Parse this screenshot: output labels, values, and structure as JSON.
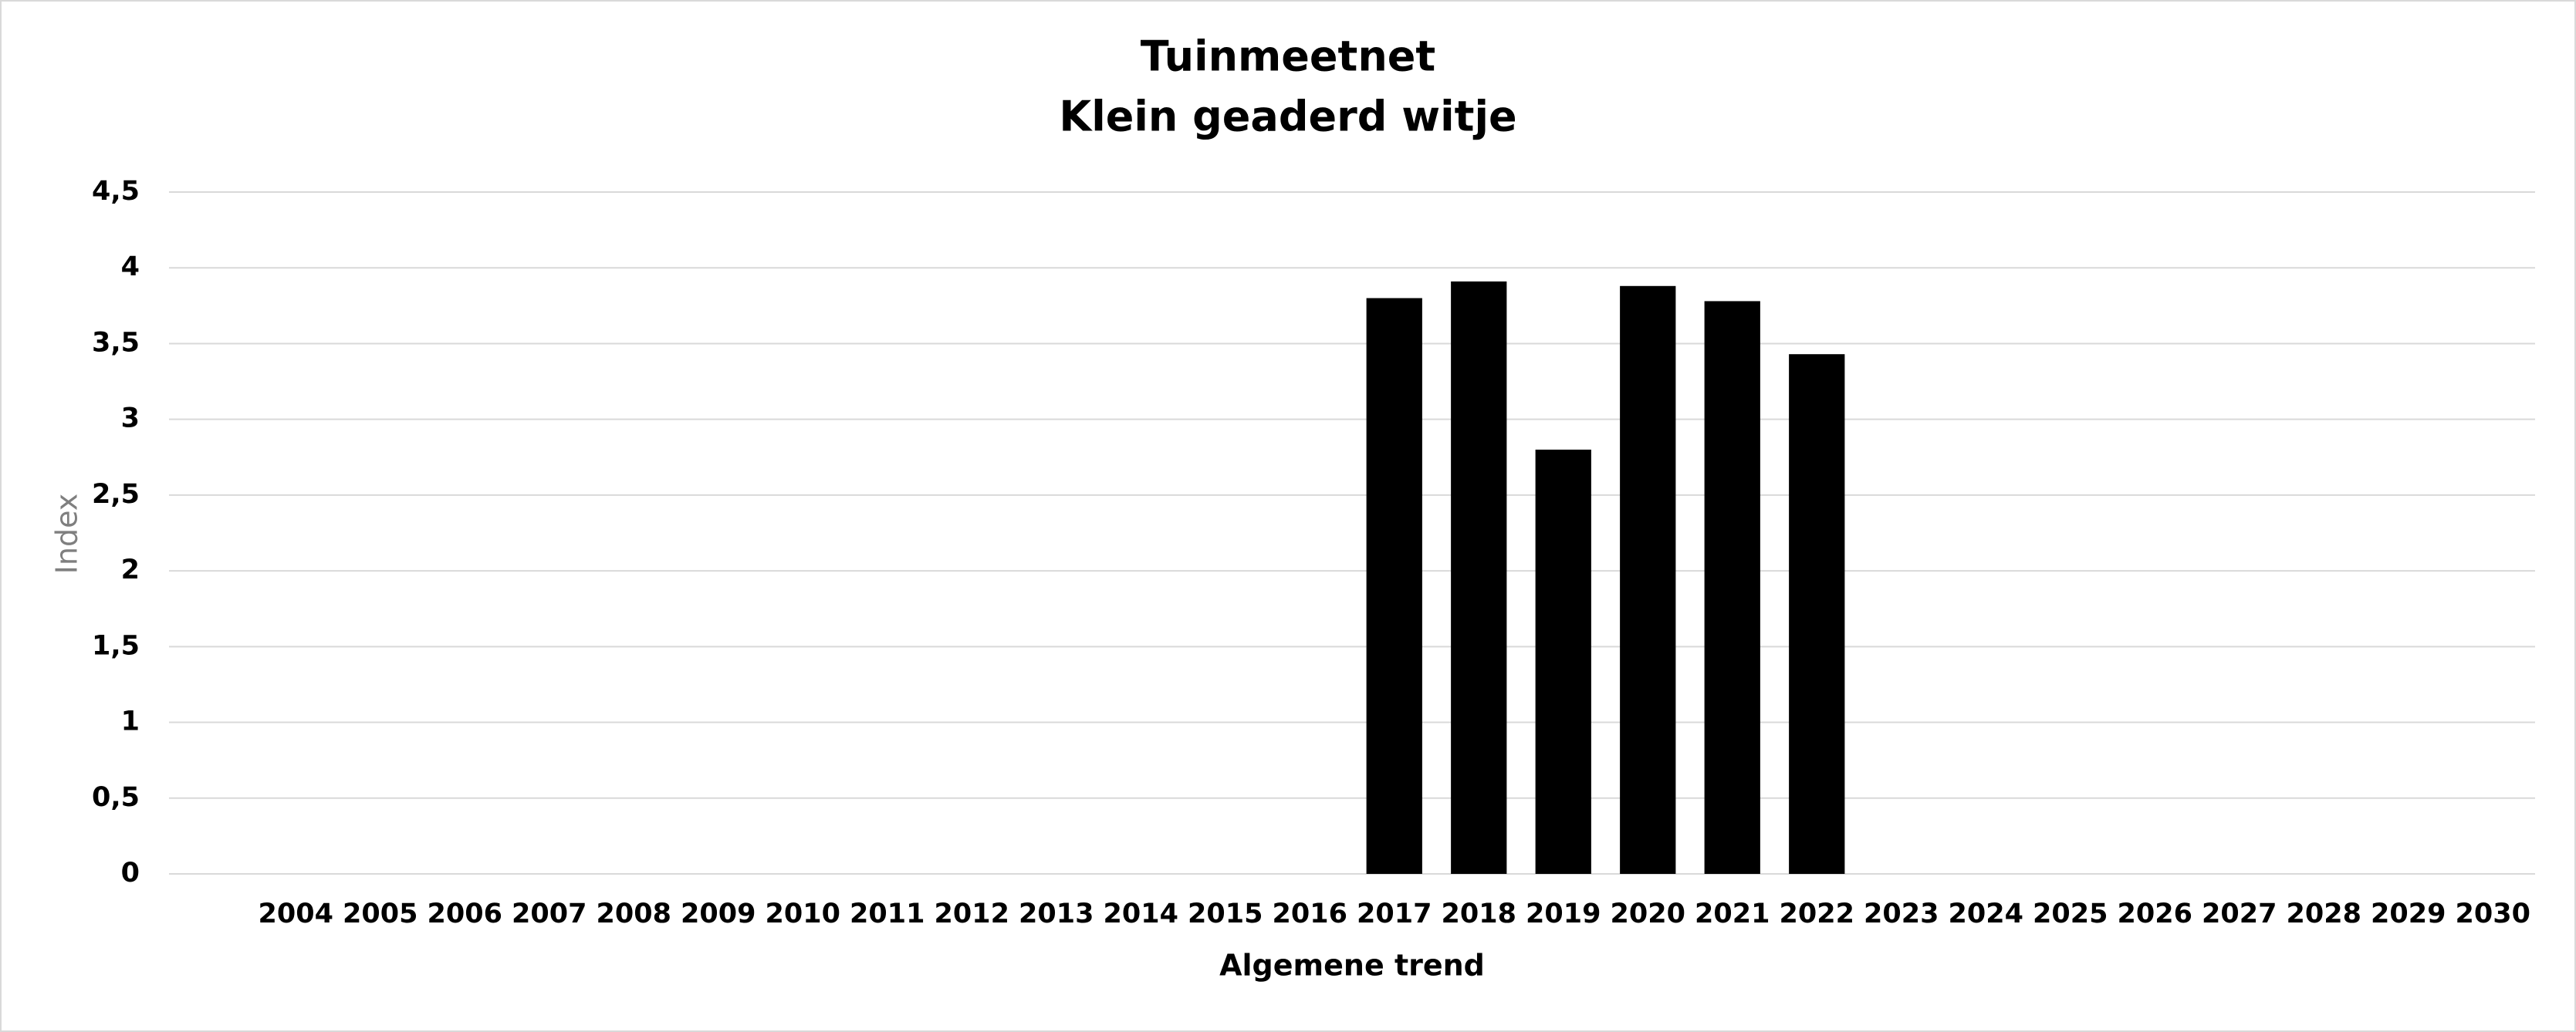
{
  "chart_data": {
    "type": "bar",
    "title": "Tuinmeetnet",
    "subtitle": "Klein geaderd witje",
    "x_label": "Algemene trend",
    "y_label": "Index",
    "categories": [
      null,
      "2004",
      "2005",
      "2006",
      "2007",
      "2008",
      "2009",
      "2010",
      "2011",
      "2012",
      "2013",
      "2014",
      "2015",
      "2016",
      "2017",
      "2018",
      "2019",
      "2020",
      "2021",
      "2022",
      "2023",
      "2024",
      "2025",
      "2026",
      "2027",
      "2028",
      "2029",
      "2030"
    ],
    "values": [
      null,
      null,
      null,
      null,
      null,
      null,
      null,
      null,
      null,
      null,
      null,
      null,
      null,
      null,
      3.8,
      3.91,
      2.8,
      3.88,
      3.78,
      3.43,
      null,
      null,
      null,
      null,
      null,
      null,
      null,
      null
    ],
    "color": "#000000",
    "ylim": [
      0,
      4.5
    ],
    "yticks": [
      0,
      {
        "value": 0.5,
        "label": "0,5"
      },
      1,
      {
        "value": 1.5,
        "label": "1,5"
      },
      2,
      {
        "value": 2.5,
        "label": "2,5"
      },
      3,
      {
        "value": 3.5,
        "label": "3,5"
      },
      4,
      {
        "value": 4.5,
        "label": "4,5"
      }
    ],
    "grid": true
  }
}
